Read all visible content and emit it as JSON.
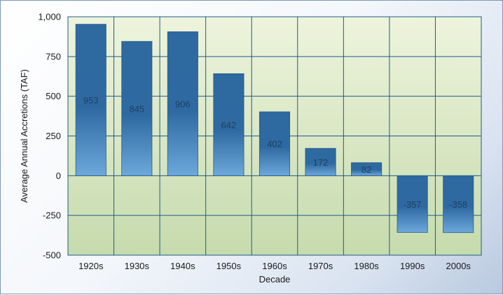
{
  "chart_data": {
    "type": "bar",
    "title": "",
    "xlabel": "Decade",
    "ylabel": "Average Annual Accretions (TAF)",
    "categories": [
      "1920s",
      "1930s",
      "1940s",
      "1950s",
      "1960s",
      "1970s",
      "1980s",
      "1990s",
      "2000s"
    ],
    "values": [
      953,
      845,
      906,
      642,
      402,
      172,
      82,
      -357,
      -358
    ],
    "data_labels": [
      "953",
      "845",
      "906",
      "642",
      "402",
      "172",
      "82",
      "-357",
      "-358"
    ],
    "ylim": [
      -500,
      1000
    ],
    "yticks": [
      -500,
      -250,
      0,
      250,
      500,
      750,
      1000
    ],
    "ytick_labels": [
      "-500",
      "-250",
      "0",
      "250",
      "500",
      "750",
      "1,000"
    ],
    "grid": true,
    "legend": "none",
    "colors": {
      "bar": "#2f6aa0",
      "bar_highlight": "#6ba6d9",
      "plot_bg_top": "#eef4dc",
      "plot_bg_bottom": "#c7dcae",
      "grid": "#1f5a8c"
    }
  }
}
